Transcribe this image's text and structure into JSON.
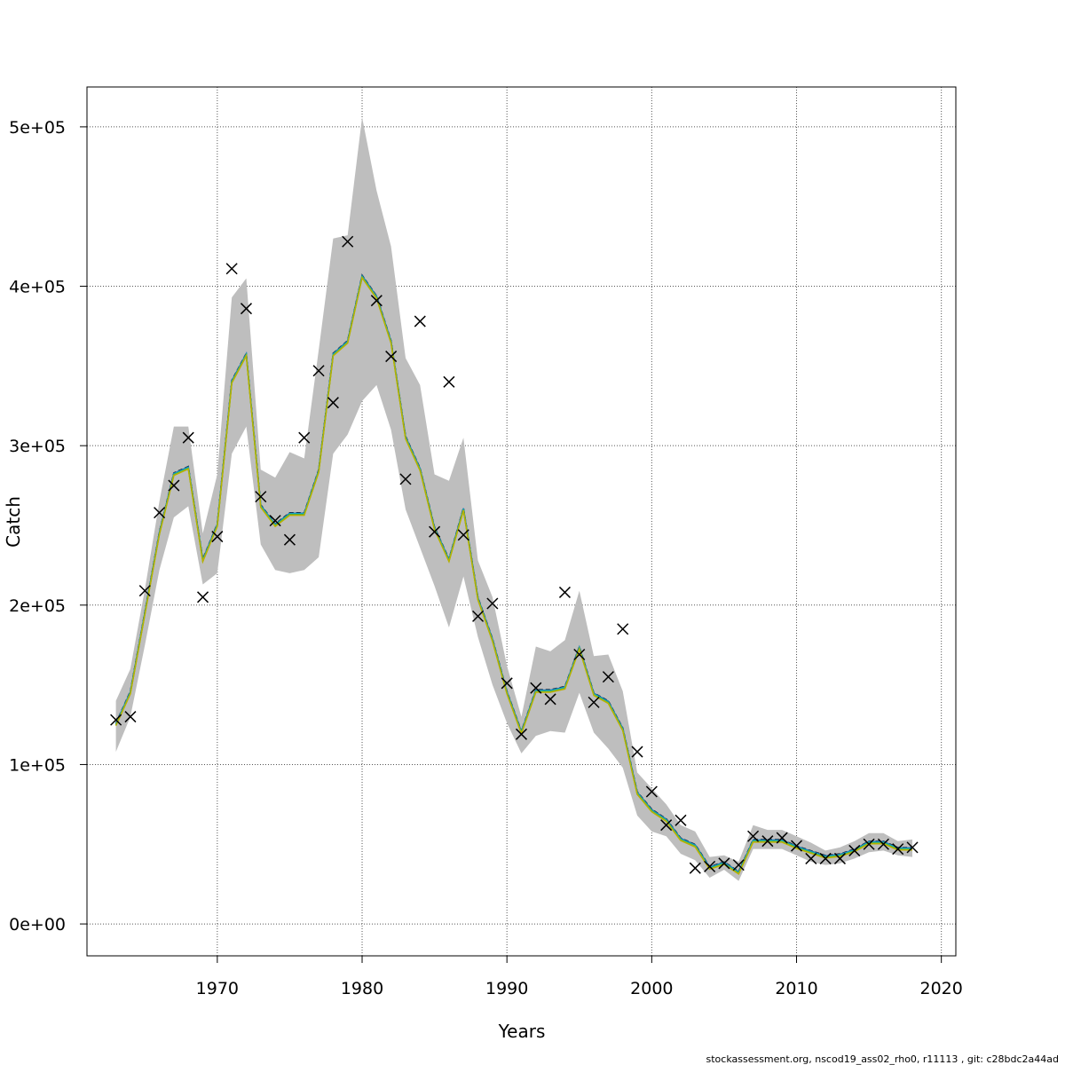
{
  "chart_data": {
    "type": "line",
    "title": "",
    "xlabel": "Years",
    "ylabel": "Catch",
    "xlim": [
      1961,
      2021
    ],
    "ylim": [
      -20000,
      525000
    ],
    "x_ticks": [
      1970,
      1980,
      1990,
      2000,
      2010,
      2020
    ],
    "y_ticks": [
      0,
      100000,
      200000,
      300000,
      400000,
      500000
    ],
    "y_tick_labels": [
      "0e+00",
      "1e+05",
      "2e+05",
      "3e+05",
      "4e+05",
      "5e+05"
    ],
    "grid": true,
    "footer": "stockassessment.org, nscod19_ass02_rho0, r11113 , git: c28bdc2a44ad",
    "colors": {
      "band": "#bebebe",
      "model": [
        "#000000",
        "#2166ac",
        "#1f78b4",
        "#00a6c8",
        "#17becf",
        "#2ca02c",
        "#7fbf3f",
        "#b8b000"
      ],
      "observed": "#000000",
      "grid": "#555555"
    },
    "years": [
      1963,
      1964,
      1965,
      1966,
      1967,
      1968,
      1969,
      1970,
      1971,
      1972,
      1973,
      1974,
      1975,
      1976,
      1977,
      1978,
      1979,
      1980,
      1981,
      1982,
      1983,
      1984,
      1985,
      1986,
      1987,
      1988,
      1989,
      1990,
      1991,
      1992,
      1993,
      1994,
      1995,
      1996,
      1997,
      1998,
      1999,
      2000,
      2001,
      2002,
      2003,
      2004,
      2005,
      2006,
      2007,
      2008,
      2009,
      2010,
      2011,
      2012,
      2013,
      2014,
      2015,
      2016,
      2017,
      2018
    ],
    "series": [
      {
        "name": "",
        "kind": "confidence_band",
        "upper": [
          140000,
          160000,
          210000,
          265000,
          312000,
          312000,
          245000,
          282000,
          393000,
          405000,
          285000,
          280000,
          296000,
          292000,
          360000,
          430000,
          432000,
          506000,
          460000,
          425000,
          355000,
          338000,
          282000,
          278000,
          305000,
          228000,
          205000,
          162000,
          130000,
          174000,
          171000,
          178000,
          209000,
          168000,
          169000,
          146000,
          95000,
          85000,
          75000,
          62000,
          58000,
          42000,
          43000,
          39000,
          62000,
          59000,
          59000,
          55000,
          51000,
          46000,
          48000,
          52000,
          57000,
          57000,
          52000,
          53000
        ],
        "lower": [
          108000,
          130000,
          175000,
          222000,
          255000,
          262000,
          213000,
          220000,
          295000,
          312000,
          238000,
          222000,
          220000,
          222000,
          230000,
          295000,
          307000,
          328000,
          338000,
          310000,
          260000,
          236000,
          212000,
          186000,
          218000,
          180000,
          150000,
          126000,
          107000,
          118000,
          121000,
          120000,
          145000,
          120000,
          110000,
          98000,
          68000,
          58000,
          55000,
          44000,
          40000,
          29000,
          34000,
          27000,
          47000,
          47000,
          47000,
          43000,
          39000,
          37000,
          38000,
          41000,
          45000,
          46000,
          43000,
          42000
        ]
      },
      {
        "name": "",
        "kind": "estimate",
        "values": [
          125000,
          145000,
          195000,
          245000,
          282000,
          286000,
          228000,
          250000,
          340000,
          357000,
          262000,
          250000,
          257000,
          257000,
          284000,
          357000,
          365000,
          406000,
          393000,
          365000,
          305000,
          285000,
          248000,
          228000,
          260000,
          204000,
          178000,
          145000,
          120000,
          146000,
          146000,
          148000,
          173000,
          144000,
          139000,
          122000,
          82000,
          71000,
          65000,
          53000,
          49000,
          35000,
          38000,
          32000,
          52000,
          52000,
          52000,
          48000,
          45000,
          42000,
          43000,
          46000,
          51000,
          51000,
          47000,
          47000
        ]
      }
    ],
    "observed": {
      "name": "",
      "marker": "x",
      "values": [
        128000,
        130000,
        209000,
        258000,
        275000,
        305000,
        205000,
        243000,
        411000,
        386000,
        268000,
        253000,
        241000,
        305000,
        347000,
        327000,
        428000,
        null,
        391000,
        356000,
        279000,
        378000,
        246000,
        340000,
        244000,
        193000,
        201000,
        151000,
        119000,
        148000,
        141000,
        208000,
        169000,
        139000,
        155000,
        185000,
        108000,
        83000,
        62000,
        65000,
        35000,
        36000,
        38000,
        37000,
        55000,
        52000,
        54000,
        49000,
        41000,
        41000,
        41000,
        46000,
        50000,
        50000,
        47000,
        48000
      ]
    }
  }
}
